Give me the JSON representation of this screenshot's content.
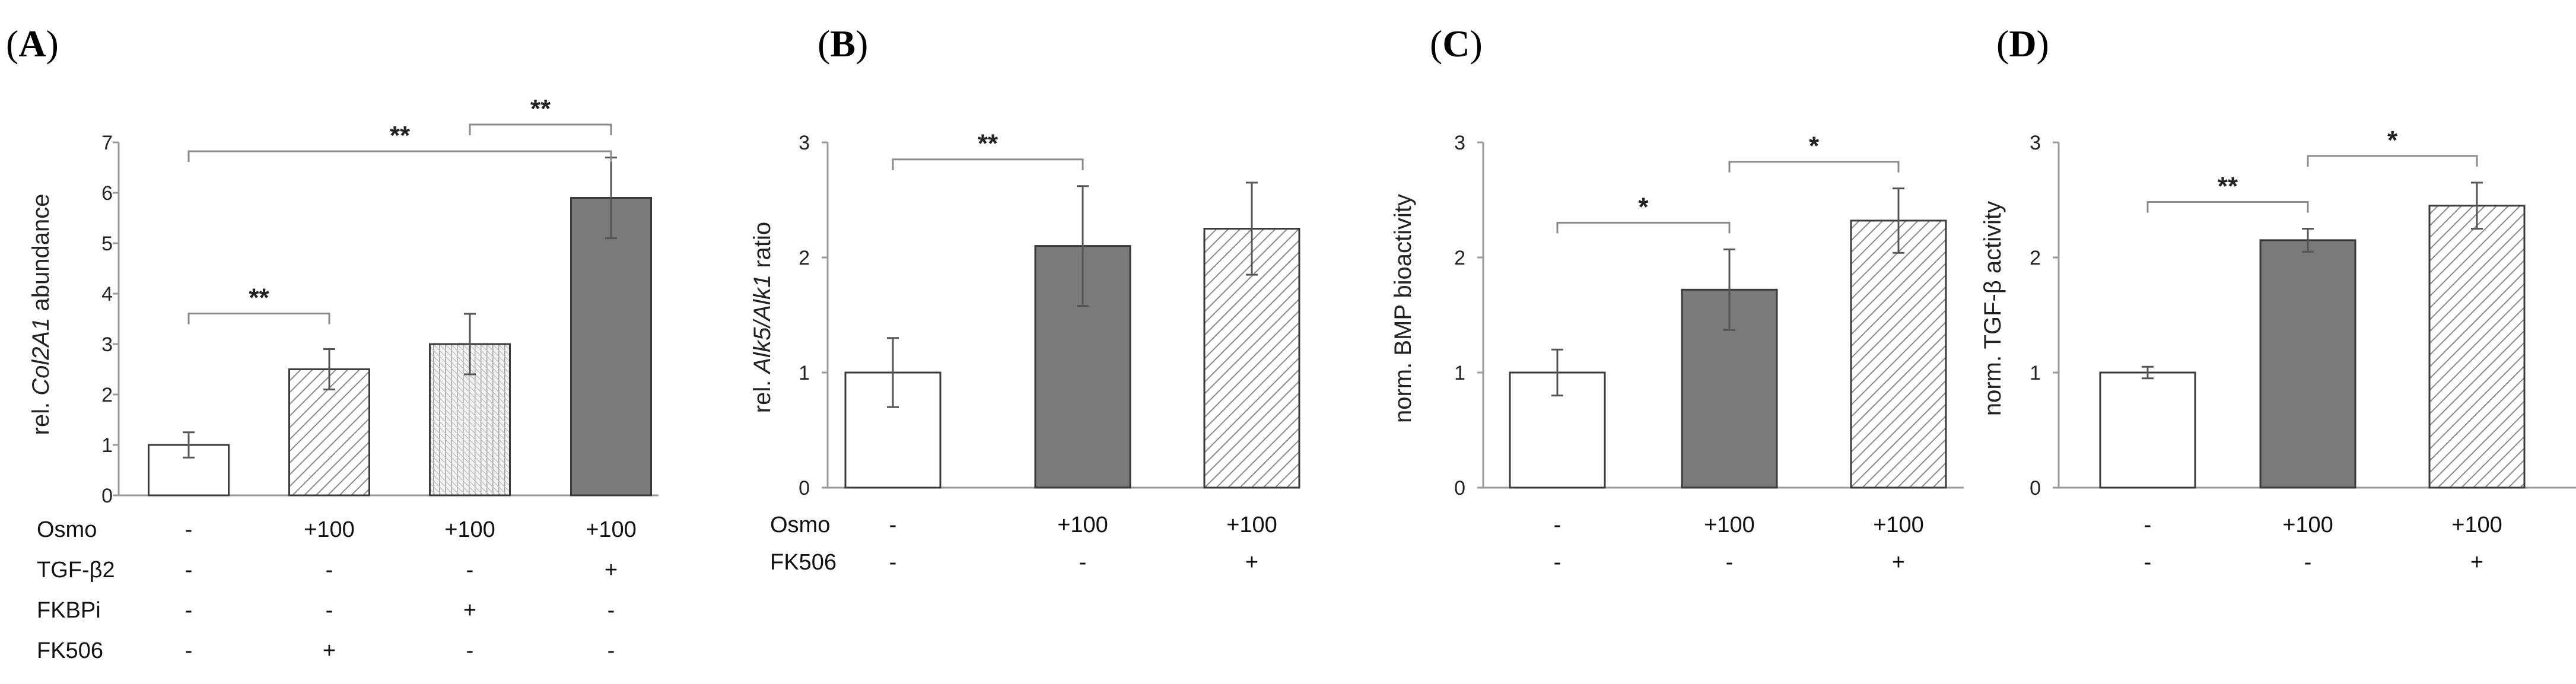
{
  "chart_data": [
    {
      "type": "bar",
      "panel": "A",
      "ylabel_parts": [
        "rel. ",
        "Col2A1",
        " abundance"
      ],
      "ylim": [
        0,
        7
      ],
      "yticks": [
        "0",
        "1",
        "2",
        "3",
        "4",
        "5",
        "6",
        "7"
      ],
      "values": [
        1.0,
        2.5,
        3.0,
        5.9
      ],
      "errors": [
        0.25,
        0.4,
        0.6,
        0.8
      ],
      "fills": [
        "white",
        "hatch",
        "crosshatch",
        "gray"
      ],
      "conditions": [
        {
          "name": "Osmo",
          "values": [
            "-",
            "+100",
            "+100",
            "+100"
          ]
        },
        {
          "name": "TGF-β2",
          "values": [
            "-",
            "-",
            "-",
            "+"
          ]
        },
        {
          "name": "FKBPi",
          "values": [
            "-",
            "-",
            "+",
            "-"
          ]
        },
        {
          "name": "FK506",
          "values": [
            "-",
            "+",
            "-",
            "-"
          ]
        }
      ],
      "significance": [
        {
          "from": 0,
          "to": 1,
          "label": "**"
        },
        {
          "from": 2,
          "to": 3,
          "label": "**"
        },
        {
          "from": 0,
          "to": 3,
          "label": "**"
        }
      ]
    },
    {
      "type": "bar",
      "panel": "B",
      "ylabel_parts": [
        "rel. ",
        "Alk5/Alk1",
        " ratio"
      ],
      "ylim": [
        0,
        3
      ],
      "yticks": [
        "0",
        "1",
        "2",
        "3"
      ],
      "values": [
        1.0,
        2.1,
        2.25
      ],
      "errors": [
        0.3,
        0.52,
        0.4
      ],
      "fills": [
        "white",
        "gray",
        "hatch"
      ],
      "conditions": [
        {
          "name": "Osmo",
          "values": [
            "-",
            "+100",
            "+100"
          ]
        },
        {
          "name": "FK506",
          "values": [
            "-",
            "-",
            "+"
          ]
        }
      ],
      "significance": [
        {
          "from": 0,
          "to": 1,
          "label": "**"
        }
      ]
    },
    {
      "type": "bar",
      "panel": "C",
      "ylabel_parts": [
        "norm. BMP bioactivity"
      ],
      "ylim": [
        0,
        3
      ],
      "yticks": [
        "0",
        "1",
        "2",
        "3"
      ],
      "values": [
        1.0,
        1.72,
        2.32
      ],
      "errors": [
        0.2,
        0.35,
        0.28
      ],
      "fills": [
        "white",
        "gray",
        "hatch"
      ],
      "conditions": [
        {
          "name": "",
          "values": [
            "-",
            "+100",
            "+100"
          ]
        },
        {
          "name": "",
          "values": [
            "-",
            "-",
            "+"
          ]
        }
      ],
      "significance": [
        {
          "from": 0,
          "to": 1,
          "label": "*"
        },
        {
          "from": 1,
          "to": 2,
          "label": "*"
        }
      ]
    },
    {
      "type": "bar",
      "panel": "D",
      "ylabel_parts": [
        "norm. TGF-β activity"
      ],
      "ylim": [
        0,
        3
      ],
      "yticks": [
        "0",
        "1",
        "2",
        "3"
      ],
      "values": [
        1.0,
        2.15,
        2.45
      ],
      "errors": [
        0.05,
        0.1,
        0.2
      ],
      "fills": [
        "white",
        "gray",
        "hatch"
      ],
      "conditions": [
        {
          "name": "",
          "values": [
            "-",
            "+100",
            "+100"
          ]
        },
        {
          "name": "",
          "values": [
            "-",
            "-",
            "+"
          ]
        }
      ],
      "significance": [
        {
          "from": 0,
          "to": 1,
          "label": "**"
        },
        {
          "from": 1,
          "to": 2,
          "label": "*"
        }
      ]
    }
  ],
  "colors": {
    "bar_gray": "#7a7a7a",
    "bar_border": "#3a3a3a",
    "axis": "#9a9a9a",
    "hatch_line": "#8a8a8a",
    "sig_line": "#8a8a8a"
  }
}
